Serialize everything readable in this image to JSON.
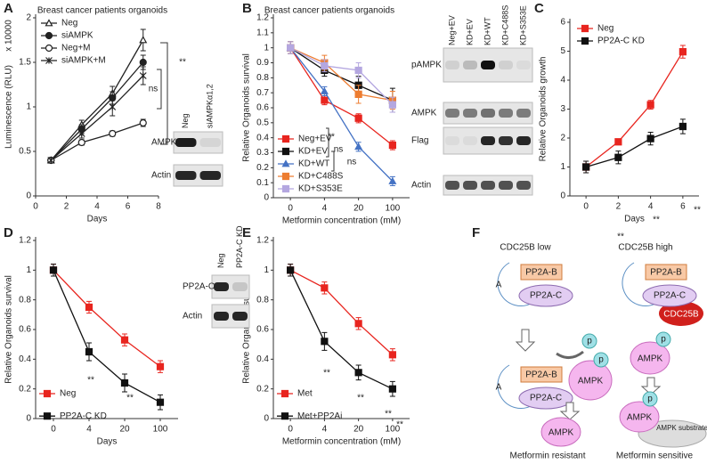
{
  "chart_data": [
    {
      "type": "line",
      "title": "Breast cancer patients organoids",
      "annotation": "x 10000",
      "x_label": "Days",
      "y_label": "Luminescence (RLU)",
      "x": [
        1,
        3,
        5,
        7
      ],
      "xlim": [
        0,
        8
      ],
      "xticks": [
        0,
        2,
        4,
        6,
        8
      ],
      "ylim": [
        0,
        2
      ],
      "yticks": [
        0,
        0.5,
        1,
        1.5,
        2
      ],
      "legend": "upper left",
      "series": [
        {
          "name": "Neg",
          "color": "#222222",
          "marker": "triangle-open",
          "values": [
            0.4,
            0.8,
            1.15,
            1.75
          ],
          "errors": [
            0.03,
            0.05,
            0.08,
            0.12
          ]
        },
        {
          "name": "siAMPK",
          "color": "#222222",
          "marker": "circle",
          "values": [
            0.4,
            0.75,
            1.1,
            1.5
          ],
          "errors": [
            0.03,
            0.05,
            0.07,
            0.08
          ]
        },
        {
          "name": "Neg+M",
          "color": "#222222",
          "marker": "circle-open",
          "values": [
            0.4,
            0.6,
            0.7,
            0.82
          ],
          "errors": [
            0.02,
            0.03,
            0.03,
            0.04
          ]
        },
        {
          "name": "siAMPK+M",
          "color": "#222222",
          "marker": "star",
          "values": [
            0.4,
            0.7,
            1.0,
            1.35
          ],
          "errors": [
            0.03,
            0.05,
            0.1,
            0.1
          ]
        }
      ],
      "annotations": [
        "**",
        "ns"
      ]
    },
    {
      "type": "line",
      "title": "Breast cancer patients organoids",
      "x_label": "Metformin concentration (mM)",
      "y_label": "Relative Organoids survival",
      "categories": [
        "0",
        "4",
        "20",
        "100"
      ],
      "ylim": [
        0,
        1.2
      ],
      "yticks": [
        0,
        0.1,
        0.2,
        0.3,
        0.4,
        0.5,
        0.6,
        0.7,
        0.8,
        0.9,
        1,
        1.1,
        1.2
      ],
      "legend": "center left",
      "series": [
        {
          "name": "Neg+EV",
          "color": "#e8251f",
          "marker": "square",
          "values": [
            1,
            0.65,
            0.53,
            0.35
          ],
          "errors": [
            0.04,
            0.03,
            0.03,
            0.03
          ]
        },
        {
          "name": "KD+EV",
          "color": "#111111",
          "marker": "square",
          "values": [
            1,
            0.85,
            0.75,
            0.65
          ],
          "errors": [
            0.04,
            0.04,
            0.06,
            0.08
          ]
        },
        {
          "name": "KD+WT",
          "color": "#4472c4",
          "marker": "triangle",
          "values": [
            1,
            0.71,
            0.34,
            0.11
          ],
          "errors": [
            0.04,
            0.03,
            0.03,
            0.03
          ]
        },
        {
          "name": "KD+C488S",
          "color": "#ed7d31",
          "marker": "square",
          "values": [
            1,
            0.9,
            0.69,
            0.65
          ],
          "errors": [
            0.04,
            0.05,
            0.06,
            0.06
          ]
        },
        {
          "name": "KD+S353E",
          "color": "#b4a7e0",
          "marker": "square",
          "values": [
            1,
            0.88,
            0.85,
            0.62
          ],
          "errors": [
            0.04,
            0.04,
            0.05,
            0.05
          ]
        }
      ],
      "annotations": [
        "**",
        "ns",
        "ns"
      ]
    },
    {
      "type": "line",
      "x_label": "Days",
      "y_label": "Relative Organoids growth",
      "x": [
        0,
        2,
        4,
        6
      ],
      "xlim": [
        -1,
        7
      ],
      "xticks": [
        0,
        2,
        4,
        6
      ],
      "ylim": [
        0,
        6
      ],
      "yticks": [
        0,
        1,
        2,
        3,
        4,
        5,
        6
      ],
      "legend": "upper left",
      "series": [
        {
          "name": "Neg",
          "color": "#e8251f",
          "marker": "square",
          "values": [
            1,
            1.87,
            3.15,
            4.98
          ],
          "errors": [
            0.2,
            0.1,
            0.15,
            0.22
          ]
        },
        {
          "name": "PP2A-C KD",
          "color": "#111111",
          "marker": "square",
          "values": [
            1,
            1.33,
            1.98,
            2.4
          ],
          "errors": [
            0.2,
            0.22,
            0.22,
            0.25
          ]
        }
      ],
      "annotations": [
        "**",
        "**",
        "**"
      ]
    },
    {
      "type": "line",
      "x_label": "Days",
      "y_label": "Relative Organoids survival",
      "categories": [
        "0",
        "4",
        "20",
        "100"
      ],
      "ylim": [
        0,
        1.2
      ],
      "yticks": [
        0,
        0.2,
        0.4,
        0.6,
        0.8,
        1,
        1.2
      ],
      "legend": "lower left",
      "series": [
        {
          "name": "Neg",
          "color": "#e8251f",
          "marker": "square",
          "values": [
            1,
            0.75,
            0.53,
            0.35
          ],
          "errors": [
            0.04,
            0.04,
            0.04,
            0.04
          ]
        },
        {
          "name": "PP2A-C KD",
          "color": "#111111",
          "marker": "square",
          "values": [
            1,
            0.45,
            0.24,
            0.11
          ],
          "errors": [
            0.04,
            0.06,
            0.06,
            0.05
          ]
        }
      ],
      "annotations": [
        "**",
        "**"
      ]
    },
    {
      "type": "line",
      "x_label": "Metformin concentration (mM)",
      "y_label": "Relative Organoids survival",
      "categories": [
        "0",
        "4",
        "20",
        "100"
      ],
      "ylim": [
        0,
        1.2
      ],
      "yticks": [
        0,
        0.2,
        0.4,
        0.6,
        0.8,
        1,
        1.2
      ],
      "legend": "lower left",
      "series": [
        {
          "name": "Met",
          "color": "#e8251f",
          "marker": "square",
          "values": [
            1,
            0.88,
            0.64,
            0.43
          ],
          "errors": [
            0.04,
            0.04,
            0.04,
            0.04
          ]
        },
        {
          "name": "Met+PP2Ai",
          "color": "#111111",
          "marker": "square",
          "values": [
            1,
            0.52,
            0.31,
            0.2
          ],
          "errors": [
            0.04,
            0.06,
            0.05,
            0.05
          ]
        }
      ],
      "annotations": [
        "**",
        "**",
        "**",
        "**"
      ]
    }
  ],
  "panel_labels": [
    "A",
    "B",
    "C",
    "D",
    "E",
    "F"
  ],
  "blots": [
    {
      "columns": [
        "Neg",
        "siAMPKα1,2"
      ],
      "rows": [
        "AMPK",
        "Actin"
      ]
    },
    {
      "columns": [
        "Neg+EV",
        "KD+EV",
        "KD+WT",
        "KD+C488S",
        "KD+S353E"
      ],
      "rows": [
        "pAMPK",
        "AMPK",
        "Flag",
        "Actin"
      ]
    },
    {
      "columns": [
        "Neg",
        "PP2A-C KD"
      ],
      "rows": [
        "PP2A-C",
        "Actin"
      ]
    }
  ],
  "diagram": {
    "conditions": [
      "CDC25B low",
      "CDC25B high"
    ],
    "components": [
      "A",
      "PP2A-B",
      "PP2A-C",
      "CDC25B",
      "AMPK",
      "p",
      "AMPK substrates"
    ],
    "outcomes": [
      "Metformin resistant",
      "Metformin sensitive"
    ]
  }
}
